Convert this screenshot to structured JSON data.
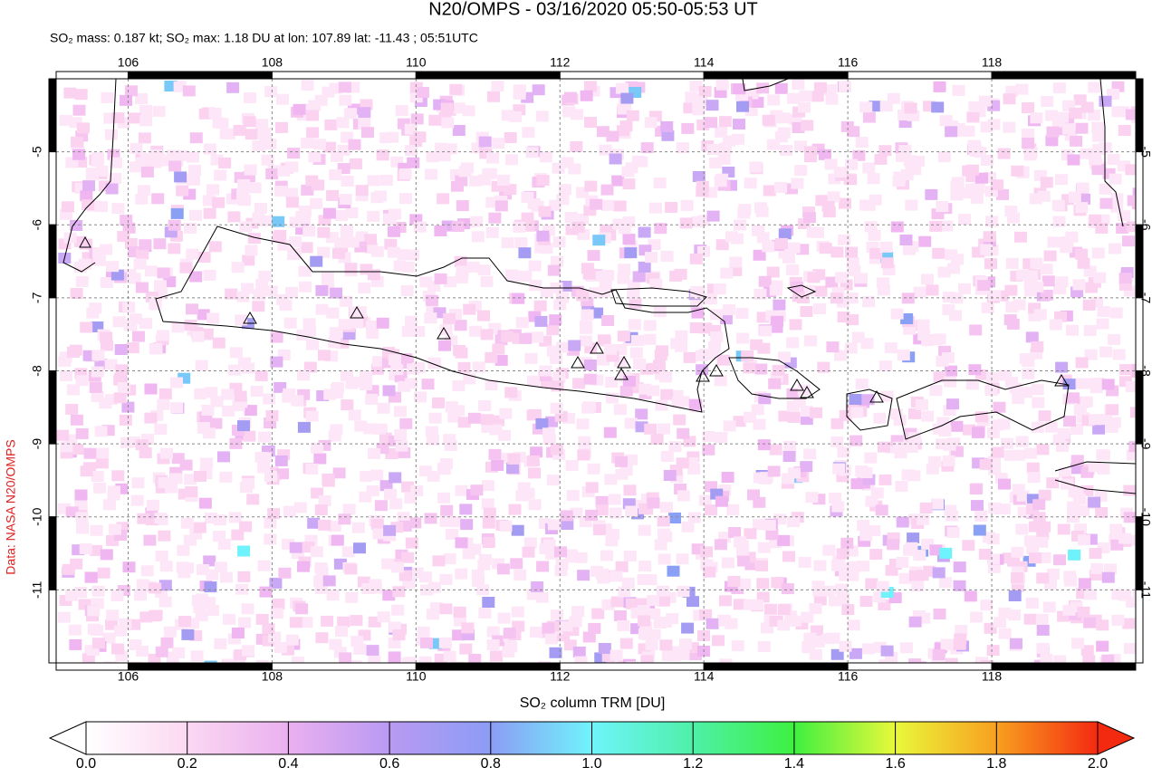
{
  "chart_data": {
    "type": "map",
    "title": "N20/OMPS - 03/16/2020 05:50-05:53 UT",
    "subtitle": "SO₂ mass: 0.187 kt; SO₂ max: 1.18 DU at lon: 107.89 lat: -11.43 ; 05:51UTC",
    "credit": "Data: NASA N20/OMPS",
    "xlim": [
      105,
      120
    ],
    "ylim": [
      -12,
      -4
    ],
    "xticks": [
      106,
      108,
      110,
      112,
      114,
      116,
      118
    ],
    "yticks": [
      -5,
      -6,
      -7,
      -8,
      -9,
      -10,
      -11
    ],
    "grid": true,
    "colorbar": {
      "label": "SO₂ column TRM [DU]",
      "lim": [
        0,
        2
      ],
      "ticks": [
        {
          "value": 0,
          "label": "0.0"
        },
        {
          "value": 0.2,
          "label": "0.2"
        },
        {
          "value": 0.4,
          "label": "0.4"
        },
        {
          "value": 0.6,
          "label": "0.6"
        },
        {
          "value": 0.8,
          "label": "0.8"
        },
        {
          "value": 1,
          "label": "1.0"
        },
        {
          "value": 1.2,
          "label": "1.2"
        },
        {
          "value": 1.4,
          "label": "1.4"
        },
        {
          "value": 1.6,
          "label": "1.6"
        },
        {
          "value": 1.8,
          "label": "1.8"
        },
        {
          "value": 2,
          "label": "2.0"
        }
      ]
    }
  }
}
